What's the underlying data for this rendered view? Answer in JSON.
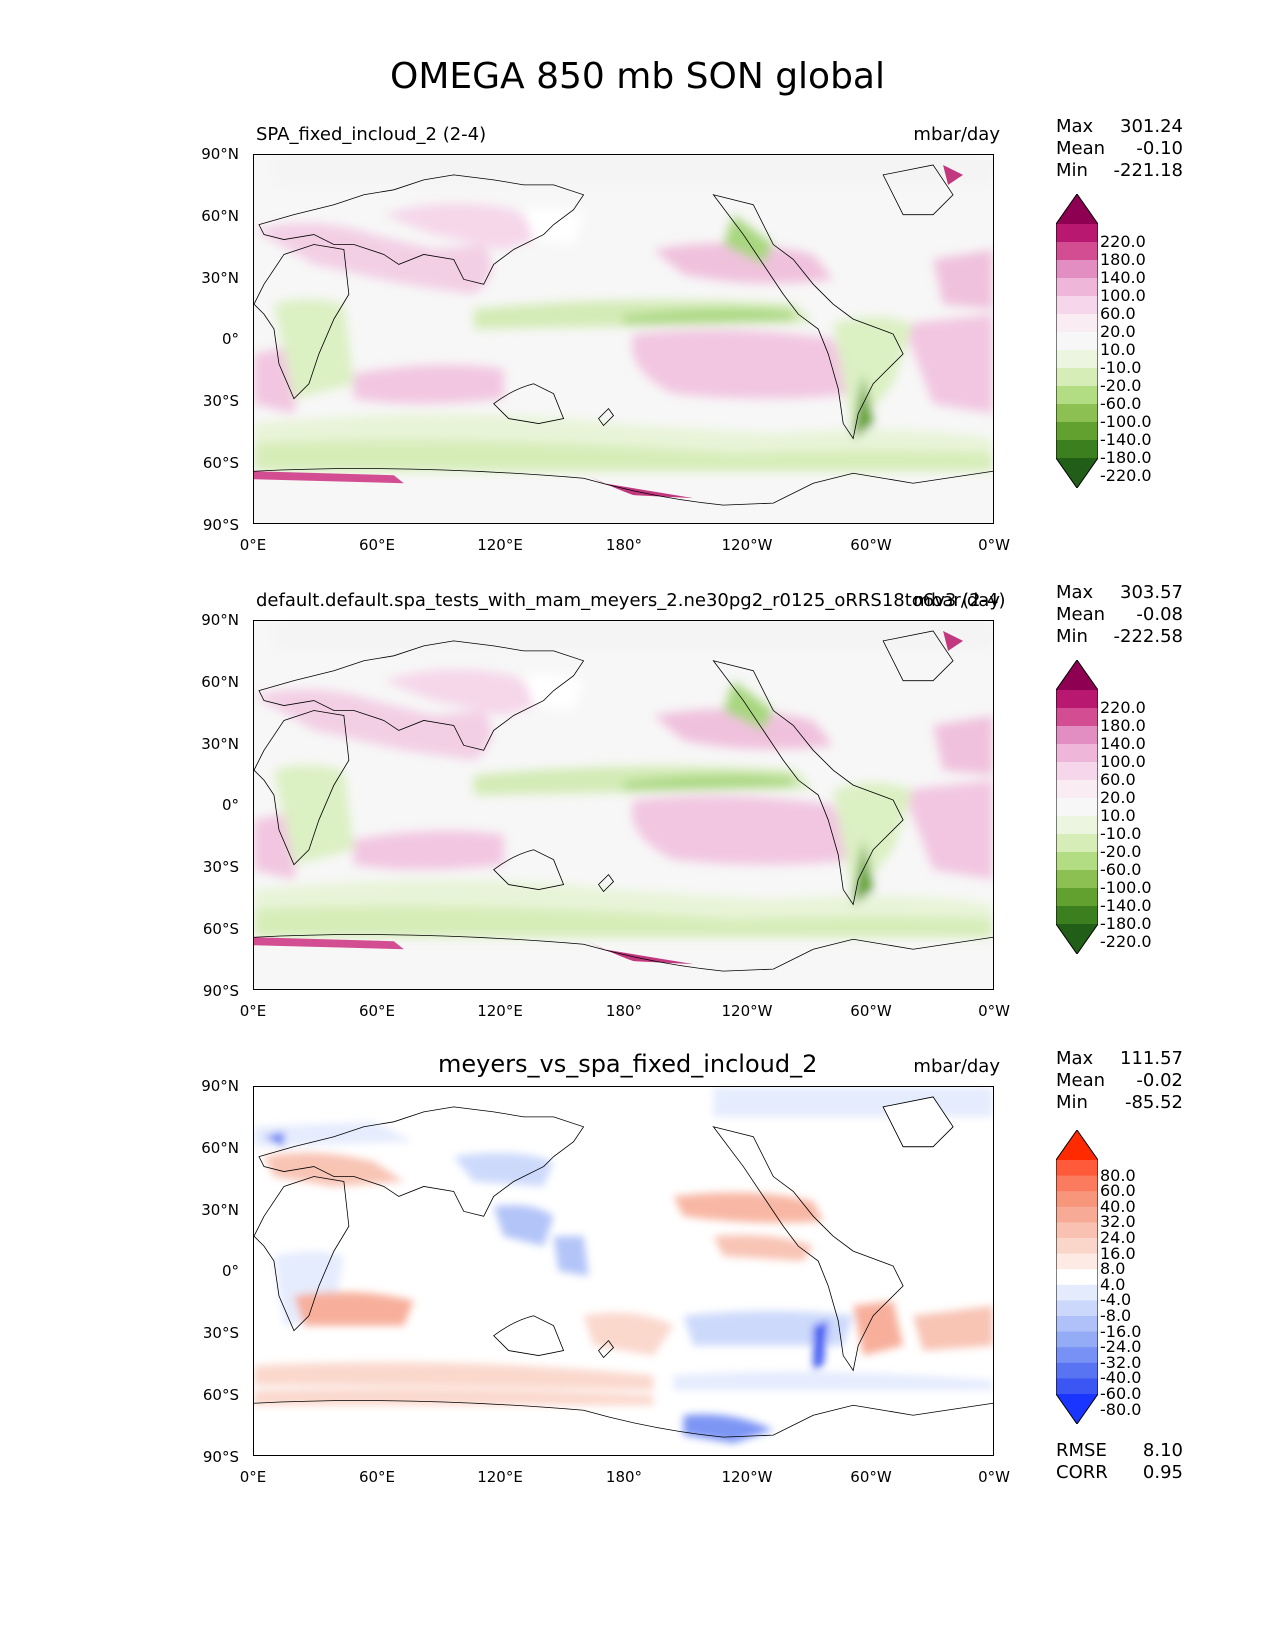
{
  "figure_title": "OMEGA 850 mb SON global",
  "chart_data": [
    {
      "type": "heatmap",
      "title": "SPA_fixed_incloud_2 (2-4)",
      "units": "mbar/day",
      "x_ticks": [
        "0°E",
        "60°E",
        "120°E",
        "180°",
        "120°W",
        "60°W",
        "0°W"
      ],
      "y_ticks": [
        "90°N",
        "60°N",
        "30°N",
        "0°",
        "30°S",
        "60°S",
        "90°S"
      ],
      "stats": {
        "max_label": "Max",
        "max": "301.24",
        "mean_label": "Mean",
        "mean": "-0.10",
        "min_label": "Min",
        "min": "-221.18"
      },
      "colorbar": {
        "labels": [
          "220.0",
          "180.0",
          "140.0",
          "100.0",
          "60.0",
          "20.0",
          "10.0",
          "-10.0",
          "-20.0",
          "-60.0",
          "-100.0",
          "-140.0",
          "-180.0",
          "-220.0"
        ],
        "colors": [
          "#8e0152",
          "#b8186f",
          "#d34d93",
          "#e28ec2",
          "#eeb7da",
          "#f5d6ea",
          "#f9ecf3",
          "#f7f7f7",
          "#ecf5e0",
          "#d6edb8",
          "#b3dd82",
          "#8cc052",
          "#62a02f",
          "#3b7f1f",
          "#215e18"
        ]
      }
    },
    {
      "type": "heatmap",
      "title": "default.default.spa_tests_with_mam_meyers_2.ne30pg2_r0125_oRRS18to6v3 (2-4)",
      "units": "mbar/day",
      "x_ticks": [
        "0°E",
        "60°E",
        "120°E",
        "180°",
        "120°W",
        "60°W",
        "0°W"
      ],
      "y_ticks": [
        "90°N",
        "60°N",
        "30°N",
        "0°",
        "30°S",
        "60°S",
        "90°S"
      ],
      "stats": {
        "max_label": "Max",
        "max": "303.57",
        "mean_label": "Mean",
        "mean": "-0.08",
        "min_label": "Min",
        "min": "-222.58"
      },
      "colorbar": {
        "labels": [
          "220.0",
          "180.0",
          "140.0",
          "100.0",
          "60.0",
          "20.0",
          "10.0",
          "-10.0",
          "-20.0",
          "-60.0",
          "-100.0",
          "-140.0",
          "-180.0",
          "-220.0"
        ],
        "colors": [
          "#8e0152",
          "#b8186f",
          "#d34d93",
          "#e28ec2",
          "#eeb7da",
          "#f5d6ea",
          "#f9ecf3",
          "#f7f7f7",
          "#ecf5e0",
          "#d6edb8",
          "#b3dd82",
          "#8cc052",
          "#62a02f",
          "#3b7f1f",
          "#215e18"
        ]
      }
    },
    {
      "type": "heatmap",
      "title": "meyers_vs_spa_fixed_incloud_2",
      "units": "mbar/day",
      "x_ticks": [
        "0°E",
        "60°E",
        "120°E",
        "180°",
        "120°W",
        "60°W",
        "0°W"
      ],
      "y_ticks": [
        "90°N",
        "60°N",
        "30°N",
        "0°",
        "30°S",
        "60°S",
        "90°S"
      ],
      "stats": {
        "max_label": "Max",
        "max": "111.57",
        "mean_label": "Mean",
        "mean": "-0.02",
        "min_label": "Min",
        "min": "-85.52"
      },
      "metrics": {
        "rmse_label": "RMSE",
        "rmse": "8.10",
        "corr_label": "CORR",
        "corr": "0.95"
      },
      "colorbar": {
        "labels": [
          "80.0",
          "60.0",
          "40.0",
          "32.0",
          "24.0",
          "16.0",
          "8.0",
          "4.0",
          "-4.0",
          "-8.0",
          "-16.0",
          "-24.0",
          "-32.0",
          "-40.0",
          "-60.0",
          "-80.0"
        ],
        "colors": [
          "#ff2a00",
          "#ff5a3a",
          "#fb7b5e",
          "#f8967c",
          "#f7ab96",
          "#f8c1b1",
          "#fad6ca",
          "#fdeae4",
          "#ffffff",
          "#e4ebfd",
          "#cbd8fb",
          "#afc1f8",
          "#94abf6",
          "#7791f4",
          "#5874f3",
          "#3b56f3",
          "#1a35ff"
        ]
      }
    }
  ]
}
